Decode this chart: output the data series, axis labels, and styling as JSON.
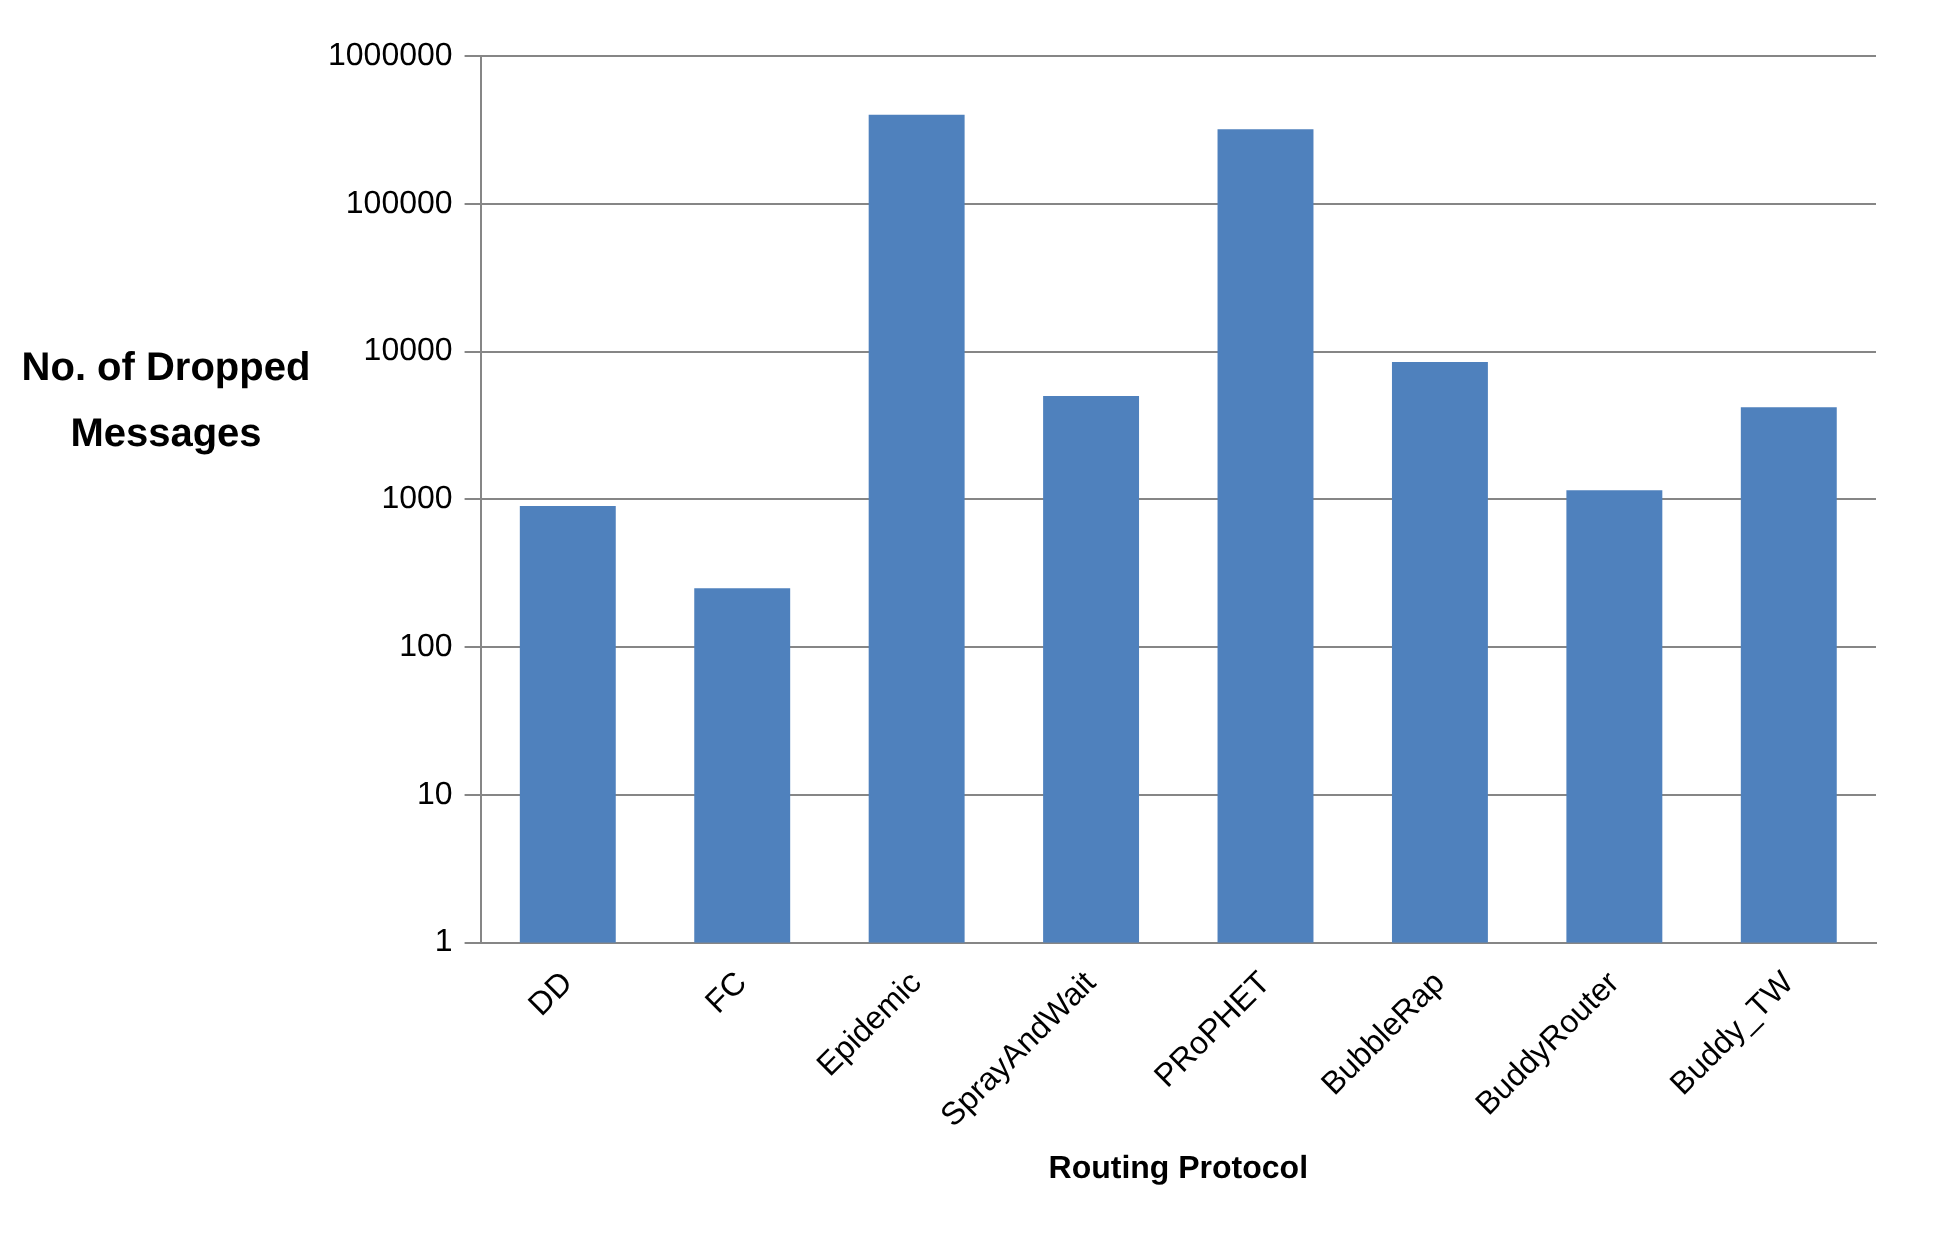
{
  "chart_data": {
    "type": "bar",
    "xlabel": "Routing Protocol",
    "ylabel": "No. of Dropped Messages",
    "categories": [
      "DD",
      "FC",
      "Epidemic",
      "SprayAndWait",
      "PRoPHET",
      "BubbleRap",
      "BuddyRouter",
      "Buddy_TW"
    ],
    "values": [
      900,
      250,
      400000,
      5000,
      320000,
      8500,
      1150,
      4200
    ],
    "color": "#4f81bd",
    "log": "y",
    "ylim": [
      1,
      1000000
    ],
    "yticks": [
      1,
      10,
      100,
      1000,
      10000,
      100000,
      1000000
    ],
    "grid": "y",
    "legend": false
  }
}
